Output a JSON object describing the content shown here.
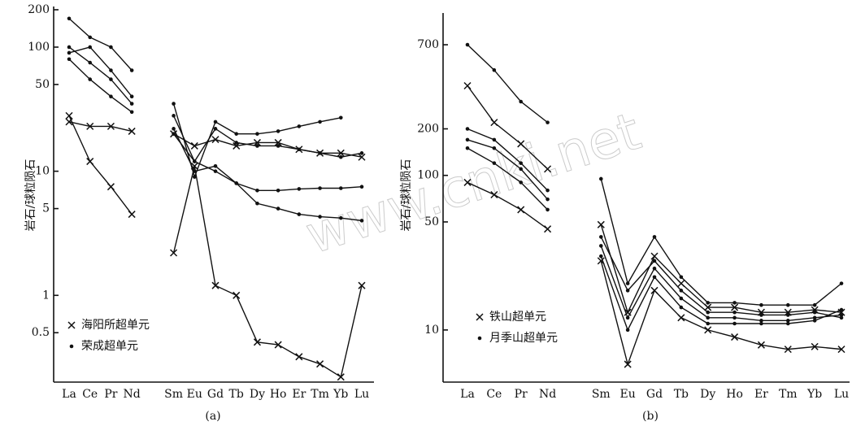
{
  "chart_data": [
    {
      "type": "line",
      "caption": "(a)",
      "ylabel": "岩石/球粒陨石",
      "log_scale": true,
      "categories": [
        "La",
        "Ce",
        "Pr",
        "Nd",
        null,
        "Sm",
        "Eu",
        "Gd",
        "Tb",
        "Dy",
        "Ho",
        "Er",
        "Tm",
        "Yb",
        "Lu"
      ],
      "ylim": [
        0.2,
        200
      ],
      "yticks": [
        0.5,
        1,
        5,
        10,
        50,
        100,
        200
      ],
      "legend": [
        {
          "marker": "x",
          "label": "海阳所超单元"
        },
        {
          "marker": "dot",
          "label": "荣成超单元"
        }
      ],
      "series": [
        {
          "marker": "x",
          "values": [
            28,
            12,
            7.5,
            4.5,
            null,
            2.2,
            11,
            1.2,
            1.0,
            0.42,
            0.4,
            0.32,
            0.28,
            0.22,
            1.2
          ]
        },
        {
          "marker": "x",
          "values": [
            25,
            23,
            23,
            21,
            null,
            20,
            16,
            18,
            16,
            17,
            17,
            15,
            14,
            14,
            13
          ]
        },
        {
          "marker": "dot",
          "values": [
            170,
            120,
            100,
            65,
            null,
            35,
            9,
            25,
            20,
            20,
            21,
            23,
            25,
            27,
            null
          ]
        },
        {
          "marker": "dot",
          "values": [
            90,
            100,
            65,
            40,
            null,
            28,
            12,
            22,
            17,
            16,
            16,
            15,
            14,
            13,
            14
          ]
        },
        {
          "marker": "dot",
          "values": [
            80,
            55,
            40,
            30,
            null,
            22,
            10,
            11,
            8,
            7,
            7,
            7.2,
            7.3,
            7.3,
            7.5
          ]
        },
        {
          "marker": "dot",
          "values": [
            100,
            75,
            55,
            35,
            null,
            20,
            12,
            10,
            8,
            5.5,
            5,
            4.5,
            4.3,
            4.2,
            4
          ]
        }
      ]
    },
    {
      "type": "line",
      "caption": "(b)",
      "ylabel": "岩石/球粒陨石",
      "log_scale": true,
      "categories": [
        "La",
        "Ce",
        "Pr",
        "Nd",
        null,
        "Sm",
        "Eu",
        "Gd",
        "Tb",
        "Dy",
        "Ho",
        "Er",
        "Tm",
        "Yb",
        "Lu"
      ],
      "ylim": [
        4.6,
        1070
      ],
      "yticks": [
        10,
        50,
        100,
        200,
        700
      ],
      "legend": [
        {
          "marker": "x",
          "label": "铁山超单元"
        },
        {
          "marker": "dot",
          "label": "月季山超单元"
        }
      ],
      "series": [
        {
          "marker": "dot",
          "values": [
            700,
            480,
            300,
            220,
            null,
            95,
            20,
            40,
            22,
            15,
            15,
            14.5,
            14.5,
            14.5,
            20
          ]
        },
        {
          "marker": "x",
          "values": [
            380,
            220,
            160,
            110,
            null,
            48,
            13,
            30,
            20,
            14,
            14,
            13,
            13,
            13.5,
            13
          ]
        },
        {
          "marker": "dot",
          "values": [
            200,
            170,
            120,
            80,
            null,
            40,
            18,
            28,
            18,
            13,
            13,
            12.5,
            12.5,
            13,
            12
          ]
        },
        {
          "marker": "dot",
          "values": [
            170,
            150,
            110,
            70,
            null,
            35,
            12,
            25,
            16,
            12,
            12,
            11.5,
            11.5,
            12,
            12.5
          ]
        },
        {
          "marker": "dot",
          "values": [
            150,
            120,
            90,
            60,
            null,
            30,
            10,
            22,
            14,
            11,
            11,
            11,
            11,
            11.5,
            13.5
          ]
        },
        {
          "marker": "x",
          "values": [
            90,
            75,
            60,
            45,
            null,
            28,
            6,
            18,
            12,
            10,
            9,
            8,
            7.5,
            7.8,
            7.5
          ]
        }
      ]
    }
  ],
  "watermark": "www.cnki.net"
}
